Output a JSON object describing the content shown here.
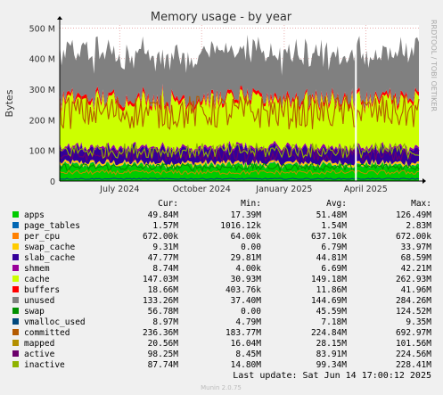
{
  "chart_data": {
    "type": "area",
    "title": "Memory usage - by year",
    "ylabel": "Bytes",
    "watermark": "RRDTOOL / TOBI OETIKER",
    "y_ticks": [
      {
        "value": 0,
        "label": "0"
      },
      {
        "value": 100000000,
        "label": "100 M"
      },
      {
        "value": 200000000,
        "label": "200 M"
      },
      {
        "value": 300000000,
        "label": "300 M"
      },
      {
        "value": 400000000,
        "label": "400 M"
      },
      {
        "value": 500000000,
        "label": "500 M"
      }
    ],
    "ylim": [
      0,
      510000000
    ],
    "x_ticks": [
      "July 2024",
      "October 2024",
      "January 2025",
      "April 2025"
    ],
    "stat_headers": [
      "Cur:",
      "Min:",
      "Avg:",
      "Max:"
    ],
    "series": [
      {
        "name": "apps",
        "color": "#00cc00",
        "cur": "49.84M",
        "min": "17.39M",
        "avg": "51.48M",
        "max": "126.49M"
      },
      {
        "name": "page_tables",
        "color": "#0066b3",
        "cur": "1.57M",
        "min": "1016.12k",
        "avg": "1.54M",
        "max": "2.83M"
      },
      {
        "name": "per_cpu",
        "color": "#ff8000",
        "cur": "672.00k",
        "min": "64.00k",
        "avg": "637.10k",
        "max": "672.00k"
      },
      {
        "name": "swap_cache",
        "color": "#ffcc00",
        "cur": "9.31M",
        "min": "0.00",
        "avg": "6.79M",
        "max": "33.97M"
      },
      {
        "name": "slab_cache",
        "color": "#330099",
        "cur": "47.77M",
        "min": "29.81M",
        "avg": "44.81M",
        "max": "68.59M"
      },
      {
        "name": "shmem",
        "color": "#990099",
        "cur": "8.74M",
        "min": "4.00k",
        "avg": "6.69M",
        "max": "42.21M"
      },
      {
        "name": "cache",
        "color": "#ccff00",
        "cur": "147.03M",
        "min": "30.93M",
        "avg": "149.18M",
        "max": "262.93M"
      },
      {
        "name": "buffers",
        "color": "#ff0000",
        "cur": "18.66M",
        "min": "403.76k",
        "avg": "11.86M",
        "max": "41.96M"
      },
      {
        "name": "unused",
        "color": "#808080",
        "cur": "133.26M",
        "min": "37.40M",
        "avg": "144.69M",
        "max": "284.26M"
      },
      {
        "name": "swap",
        "color": "#008f00",
        "cur": "56.78M",
        "min": "0.00",
        "avg": "45.59M",
        "max": "124.52M"
      },
      {
        "name": "vmalloc_used",
        "color": "#00487d",
        "cur": "8.97M",
        "min": "4.79M",
        "avg": "7.18M",
        "max": "9.35M"
      },
      {
        "name": "committed",
        "color": "#b35a00",
        "cur": "236.36M",
        "min": "183.77M",
        "avg": "224.84M",
        "max": "692.97M"
      },
      {
        "name": "mapped",
        "color": "#b38f00",
        "cur": "20.56M",
        "min": "16.04M",
        "avg": "28.15M",
        "max": "101.56M"
      },
      {
        "name": "active",
        "color": "#6b006b",
        "cur": "98.25M",
        "min": "8.45M",
        "avg": "83.91M",
        "max": "224.56M"
      },
      {
        "name": "inactive",
        "color": "#8fb300",
        "cur": "87.74M",
        "min": "14.80M",
        "avg": "99.34M",
        "max": "228.41M"
      }
    ],
    "last_update": "Last update: Sat Jun 14 17:00:12 2025",
    "footer": "Munin 2.0.75"
  }
}
